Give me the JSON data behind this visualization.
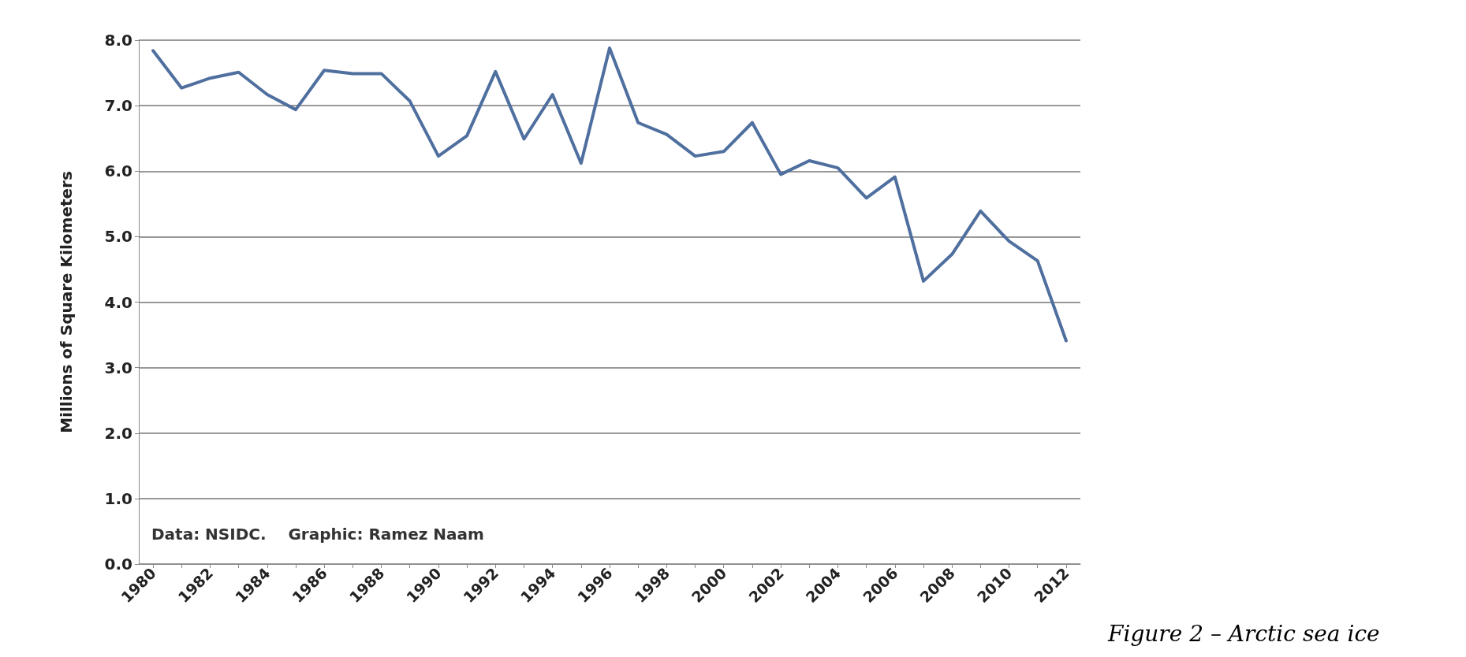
{
  "chart_data": {
    "type": "line",
    "ylabel": "Millions of Square Kilometers",
    "categories": [
      "1980",
      null,
      "1982",
      null,
      "1984",
      null,
      "1986",
      null,
      "1988",
      null,
      "1990",
      null,
      "1992",
      null,
      "1994",
      null,
      "1996",
      null,
      "1998",
      null,
      "2000",
      null,
      "2002",
      null,
      "2004",
      null,
      "2006",
      null,
      "2008",
      null,
      "2010",
      null,
      "2012"
    ],
    "series": [
      {
        "color": "#4f6f9f",
        "values": [
          7.84,
          7.27,
          7.42,
          7.51,
          7.17,
          6.94,
          7.54,
          7.49,
          7.49,
          7.07,
          6.23,
          6.54,
          7.52,
          6.49,
          7.17,
          6.12,
          7.88,
          6.74,
          6.56,
          6.23,
          6.3,
          6.74,
          5.95,
          6.16,
          6.05,
          5.59,
          5.91,
          4.32,
          4.73,
          5.39,
          4.93,
          4.63,
          3.41
        ]
      }
    ],
    "ylim": [
      0,
      8
    ],
    "yticks": [
      {
        "value": 0,
        "label": "0.0"
      },
      {
        "value": 1,
        "label": "1.0"
      },
      {
        "value": 2,
        "label": "2.0"
      },
      {
        "value": 3,
        "label": "3.0"
      },
      {
        "value": 4,
        "label": "4.0"
      },
      {
        "value": 5,
        "label": "5.0"
      },
      {
        "value": 6,
        "label": "6.0"
      },
      {
        "value": 7,
        "label": "7.0"
      },
      {
        "value": 8,
        "label": "8.0"
      }
    ],
    "grid": "y",
    "marker": "none",
    "line_style": "solid",
    "annotations": [
      "Data: NSIDC.    Graphic: Ramez Naam",
      "Figure 2 – Arctic sea ice"
    ]
  }
}
